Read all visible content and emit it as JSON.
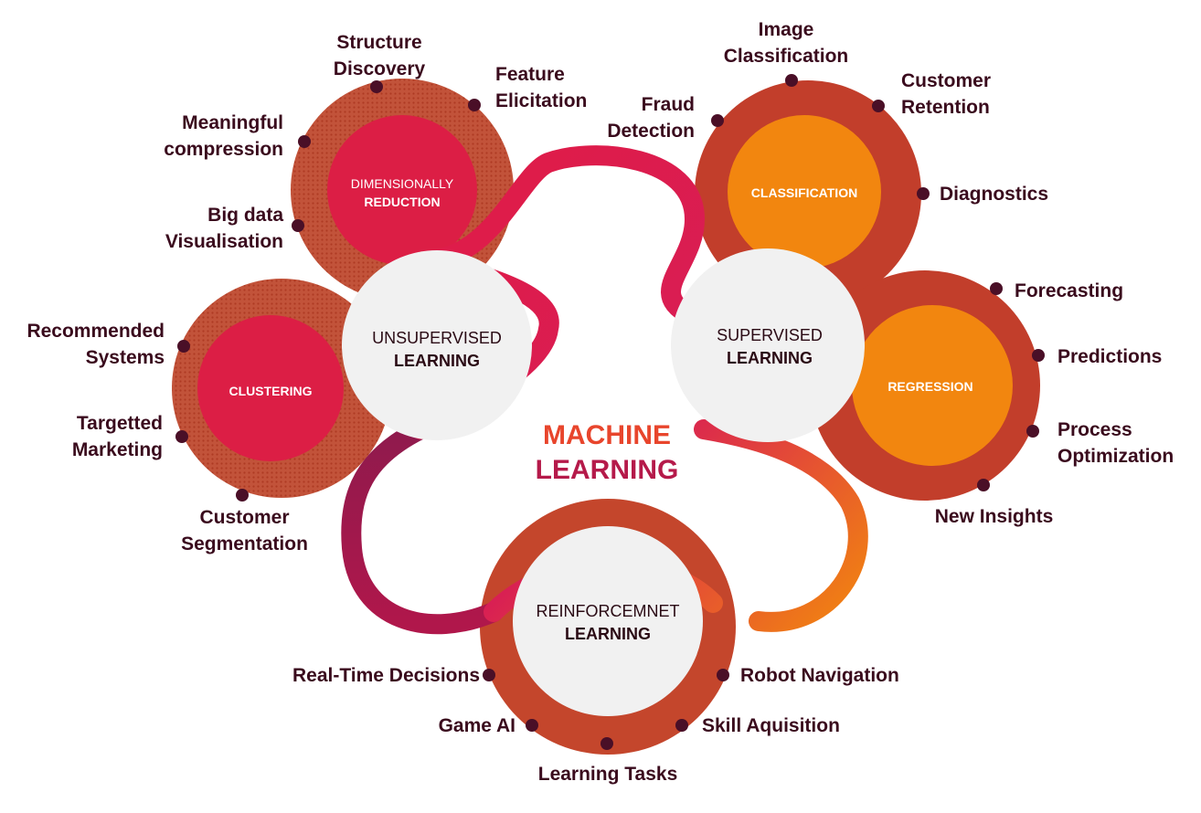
{
  "center_title": {
    "line1": "MACHINE",
    "line2": "LEARNING"
  },
  "colors": {
    "dark_ring": "#c0402b",
    "dotted_ring": "#bd4f33",
    "crimson": "#dc1e45",
    "orange": "#f2860f",
    "hub_fill": "#f1f1f1",
    "label_text": "#3a0b1d",
    "bullet": "#4a0f27"
  },
  "hubs": {
    "unsupervised": {
      "line1": "UNSUPERVISED",
      "line2": "LEARNING"
    },
    "supervised": {
      "line1": "SUPERVISED",
      "line2": "LEARNING"
    },
    "reinforcement": {
      "line1": "REINFORCEMNET",
      "line2": "LEARNING"
    }
  },
  "discs": {
    "dimensionality": {
      "line1": "DIMENSIONALLY",
      "line2": "REDUCTION"
    },
    "clustering": {
      "line1": "CLUSTERING"
    },
    "classification": {
      "line1": "CLASSIFICATION"
    },
    "regression": {
      "line1": "REGRESSION"
    }
  },
  "labels": {
    "structure_discovery": "Structure\nDiscovery",
    "feature_elicitation": "Feature\nElicitation",
    "meaningful_compression": "Meaningful\ncompression",
    "big_data_visualisation": "Big data\nVisualisation",
    "recommended_systems": "Recommended\nSystems",
    "targetted_marketing": "Targetted\nMarketing",
    "customer_segmentation": "Customer\nSegmentation",
    "image_classification": "Image\nClassification",
    "customer_retention": "Customer\nRetention",
    "fraud_detection": "Fraud\nDetection",
    "diagnostics": "Diagnostics",
    "forecasting": "Forecasting",
    "predictions": "Predictions",
    "process_optimization": "Process\nOptimization",
    "new_insights": "New Insights",
    "real_time_decisions": "Real-Time Decisions",
    "robot_navigation": "Robot Navigation",
    "game_ai": "Game AI",
    "skill_aquisition": "Skill Aquisition",
    "learning_tasks": "Learning Tasks"
  }
}
